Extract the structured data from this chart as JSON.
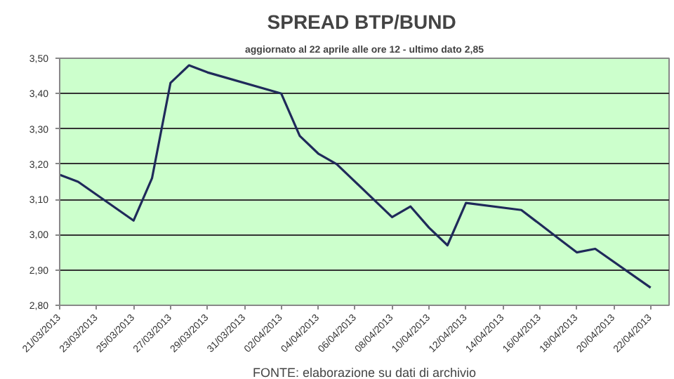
{
  "chart_data": {
    "type": "line",
    "title": "SPREAD  BTP/BUND",
    "subtitle": "aggiornato al 22 aprile alle ore 12 - ultimo dato 2,85",
    "x": [
      "2013-03-21",
      "2013-03-22",
      "2013-03-25",
      "2013-03-26",
      "2013-03-27",
      "2013-03-28",
      "2013-03-29",
      "2013-04-02",
      "2013-04-03",
      "2013-04-04",
      "2013-04-05",
      "2013-04-08",
      "2013-04-09",
      "2013-04-10",
      "2013-04-11",
      "2013-04-12",
      "2013-04-15",
      "2013-04-16",
      "2013-04-17",
      "2013-04-18",
      "2013-04-19",
      "2013-04-22"
    ],
    "series": [
      {
        "color": "#1f2a5a",
        "values": [
          3.17,
          3.15,
          3.04,
          3.16,
          3.43,
          3.48,
          3.46,
          3.4,
          3.28,
          3.23,
          3.2,
          3.05,
          3.08,
          3.02,
          2.97,
          3.09,
          3.07,
          3.03,
          2.99,
          2.95,
          2.96,
          2.85
        ]
      }
    ],
    "xlim": [
      "2013-03-21",
      "2013-04-23"
    ],
    "xticks": [
      {
        "value": "2013-03-21",
        "label": "21/03/2013"
      },
      {
        "value": "2013-03-23",
        "label": "23/03/2013"
      },
      {
        "value": "2013-03-25",
        "label": "25/03/2013"
      },
      {
        "value": "2013-03-27",
        "label": "27/03/2013"
      },
      {
        "value": "2013-03-29",
        "label": "29/03/2013"
      },
      {
        "value": "2013-03-31",
        "label": "31/03/2013"
      },
      {
        "value": "2013-04-02",
        "label": "02/04/2013"
      },
      {
        "value": "2013-04-04",
        "label": "04/04/2013"
      },
      {
        "value": "2013-04-06",
        "label": "06/04/2013"
      },
      {
        "value": "2013-04-08",
        "label": "08/04/2013"
      },
      {
        "value": "2013-04-10",
        "label": "10/04/2013"
      },
      {
        "value": "2013-04-12",
        "label": "12/04/2013"
      },
      {
        "value": "2013-04-14",
        "label": "14/04/2013"
      },
      {
        "value": "2013-04-16",
        "label": "16/04/2013"
      },
      {
        "value": "2013-04-18",
        "label": "18/04/2013"
      },
      {
        "value": "2013-04-20",
        "label": "20/04/2013"
      },
      {
        "value": "2013-04-22",
        "label": "22/04/2013"
      }
    ],
    "ylim": [
      2.8,
      3.5
    ],
    "yticks": [
      {
        "value": 2.8,
        "label": "2,80"
      },
      {
        "value": 2.9,
        "label": "2,90"
      },
      {
        "value": 3.0,
        "label": "3,00"
      },
      {
        "value": 3.1,
        "label": "3,10"
      },
      {
        "value": 3.2,
        "label": "3,20"
      },
      {
        "value": 3.3,
        "label": "3,30"
      },
      {
        "value": 3.4,
        "label": "3,40"
      },
      {
        "value": 3.5,
        "label": "3,50"
      }
    ],
    "grid": "y",
    "marker": "none",
    "line_style": "solid",
    "annotations": [
      "FONTE: elaborazione su dati di archivio"
    ]
  }
}
